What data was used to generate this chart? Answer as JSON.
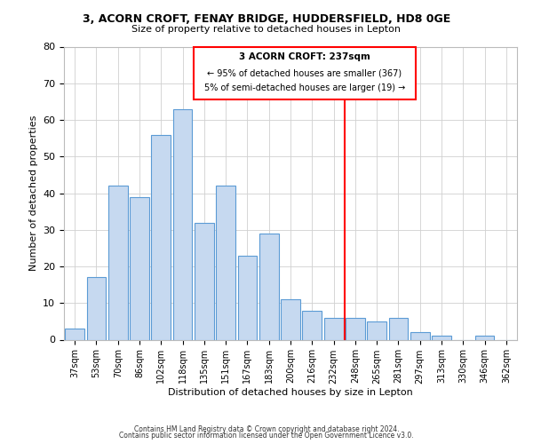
{
  "title1": "3, ACORN CROFT, FENAY BRIDGE, HUDDERSFIELD, HD8 0GE",
  "title2": "Size of property relative to detached houses in Lepton",
  "xlabel": "Distribution of detached houses by size in Lepton",
  "ylabel": "Number of detached properties",
  "bar_labels": [
    "37sqm",
    "53sqm",
    "70sqm",
    "86sqm",
    "102sqm",
    "118sqm",
    "135sqm",
    "151sqm",
    "167sqm",
    "183sqm",
    "200sqm",
    "216sqm",
    "232sqm",
    "248sqm",
    "265sqm",
    "281sqm",
    "297sqm",
    "313sqm",
    "330sqm",
    "346sqm",
    "362sqm"
  ],
  "bar_values": [
    3,
    17,
    42,
    39,
    56,
    63,
    32,
    42,
    23,
    29,
    11,
    8,
    6,
    6,
    5,
    6,
    2,
    1,
    0,
    1,
    0
  ],
  "bar_color": "#c6d9f0",
  "bar_edge_color": "#5b9bd5",
  "vline_x_index": 12.5,
  "vline_color": "red",
  "ylim": [
    0,
    80
  ],
  "yticks": [
    0,
    10,
    20,
    30,
    40,
    50,
    60,
    70,
    80
  ],
  "annotation_title": "3 ACORN CROFT: 237sqm",
  "annotation_line1": "← 95% of detached houses are smaller (367)",
  "annotation_line2": "5% of semi-detached houses are larger (19) →",
  "footnote1": "Contains HM Land Registry data © Crown copyright and database right 2024.",
  "footnote2": "Contains public sector information licensed under the Open Government Licence v3.0.",
  "background_color": "#ffffff",
  "grid_color": "#d0d0d0"
}
